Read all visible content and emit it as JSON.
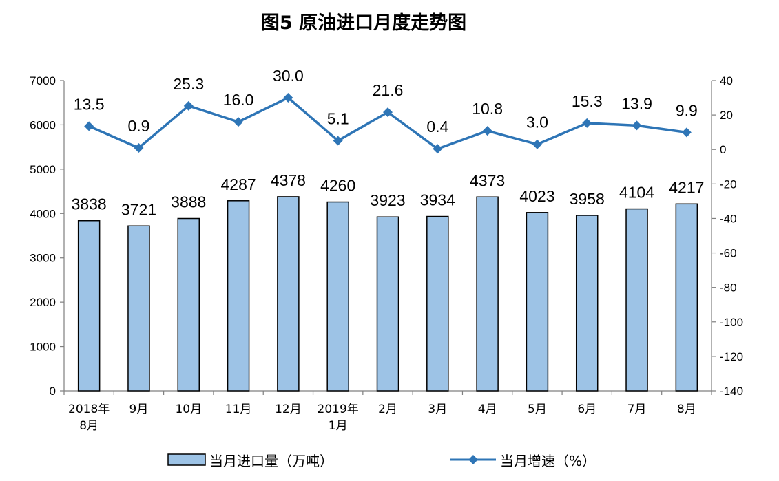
{
  "chart_data": {
    "type": "bar",
    "title": "图5  原油进口月度走势图",
    "categories": [
      [
        "2018年",
        "8月"
      ],
      [
        "9月"
      ],
      [
        "10月"
      ],
      [
        "11月"
      ],
      [
        "12月"
      ],
      [
        "2019年",
        "1月"
      ],
      [
        "2月"
      ],
      [
        "3月"
      ],
      [
        "4月"
      ],
      [
        "5月"
      ],
      [
        "6月"
      ],
      [
        "7月"
      ],
      [
        "8月"
      ]
    ],
    "series": [
      {
        "name": "当月进口量（万吨）",
        "type": "bar",
        "axis": "left",
        "values": [
          3838,
          3721,
          3888,
          4287,
          4378,
          4260,
          3923,
          3934,
          4373,
          4023,
          3958,
          4104,
          4217
        ],
        "labels": [
          "3838",
          "3721",
          "3888",
          "4287",
          "4378",
          "4260",
          "3923",
          "3934",
          "4373",
          "4023",
          "3958",
          "4104",
          "4217"
        ],
        "color": "#9dc3e6",
        "stroke": "#000000"
      },
      {
        "name": "当月增速（%）",
        "type": "line",
        "axis": "right",
        "values": [
          13.5,
          0.9,
          25.3,
          16.0,
          30.0,
          5.1,
          21.6,
          0.4,
          10.8,
          3.0,
          15.3,
          13.9,
          9.9
        ],
        "labels": [
          "13.5",
          "0.9",
          "25.3",
          "16.0",
          "30.0",
          "5.1",
          "21.6",
          "0.4",
          "10.8",
          "3.0",
          "15.3",
          "13.9",
          "9.9"
        ],
        "color": "#2e75b6",
        "marker": "diamond"
      }
    ],
    "y_left": {
      "range": [
        0,
        7000
      ],
      "ticks": [
        "0",
        "1000",
        "2000",
        "3000",
        "4000",
        "5000",
        "6000",
        "7000"
      ]
    },
    "y_right": {
      "range": [
        -140,
        40
      ],
      "ticks": [
        "-140",
        "-120",
        "-100",
        "-80",
        "-60",
        "-40",
        "-20",
        "0",
        "20",
        "40"
      ]
    },
    "grid": false,
    "legend_position": "bottom"
  }
}
